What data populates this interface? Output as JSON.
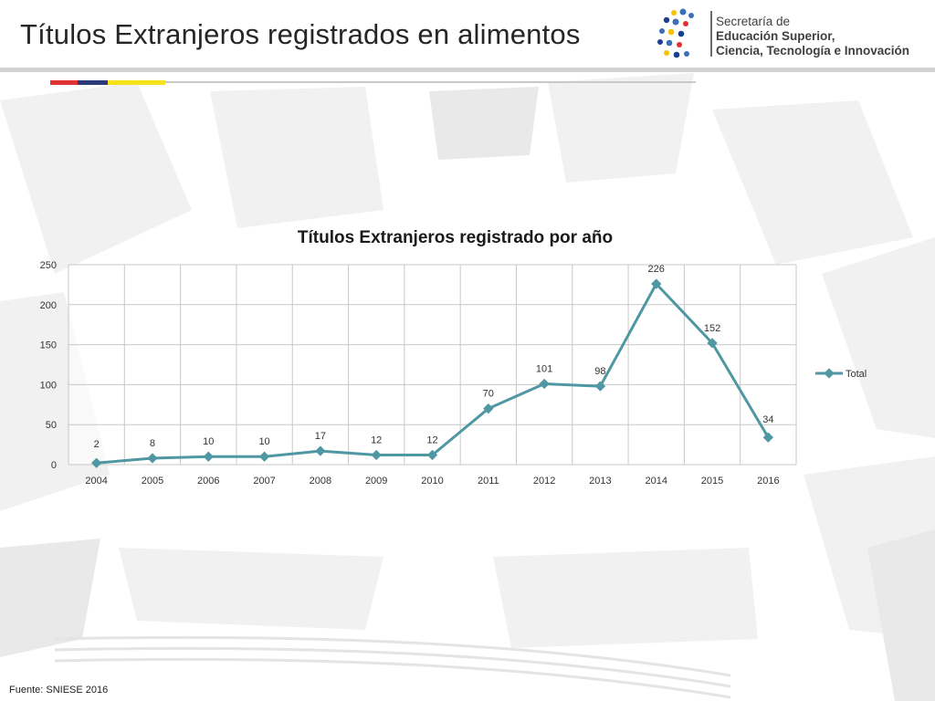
{
  "slide": {
    "title": "Títulos Extranjeros registrados en alimentos",
    "source": "Fuente: SNIESE 2016"
  },
  "logo": {
    "line1": "Secretaría de",
    "line2": "Educación Superior,",
    "line3": "Ciencia, Tecnología e Innovación"
  },
  "colors": {
    "accent_red": "#e03434",
    "accent_navy": "#2d3a7a",
    "accent_yellow": "#f5e21b",
    "series_line": "#4f97a3",
    "grid": "#c8c8c8"
  },
  "chart_data": {
    "type": "line",
    "title": "Títulos Extranjeros registrado por año",
    "xlabel": "",
    "ylabel": "",
    "categories": [
      "2004",
      "2005",
      "2006",
      "2007",
      "2008",
      "2009",
      "2010",
      "2011",
      "2012",
      "2013",
      "2014",
      "2015",
      "2016"
    ],
    "series": [
      {
        "name": "Total",
        "values": [
          2,
          8,
          10,
          10,
          17,
          12,
          12,
          70,
          101,
          98,
          226,
          152,
          34
        ]
      }
    ],
    "ylim": [
      0,
      250
    ],
    "yticks": [
      0,
      50,
      100,
      150,
      200,
      250
    ],
    "grid": "both",
    "legend": "right",
    "data_labels": true
  }
}
